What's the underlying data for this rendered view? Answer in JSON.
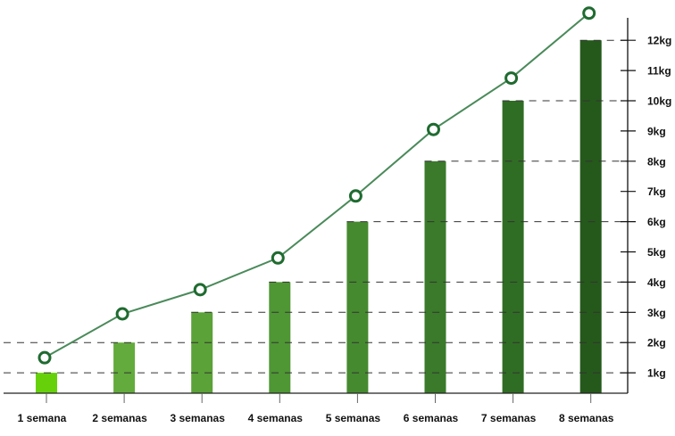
{
  "chart_data": {
    "type": "bar+line",
    "categories": [
      "1 semana",
      "2 semanas",
      "3 semanas",
      "4 semanas",
      "5 semanas",
      "6 semanas",
      "7 semanas",
      "8 semanas"
    ],
    "bars": [
      1,
      2,
      3,
      4,
      6,
      8,
      10,
      12
    ],
    "line": [
      1.5,
      2.95,
      3.75,
      4.8,
      6.85,
      9.05,
      10.75,
      12.9
    ],
    "y_ticks": [
      "1kg",
      "2kg",
      "3kg",
      "4kg",
      "5kg",
      "6kg",
      "7kg",
      "8kg",
      "9kg",
      "10kg",
      "11kg",
      "12kg"
    ],
    "y_axis_position": "right",
    "bar_colors": [
      "#66d10b",
      "#63ab3c",
      "#5ba238",
      "#4f9634",
      "#468a30",
      "#3a7a2a",
      "#306d24",
      "#25591b"
    ],
    "line_color": "#4a8a5a",
    "marker_color": "#1f6b30",
    "grid": "dashed lines at bar tops"
  }
}
